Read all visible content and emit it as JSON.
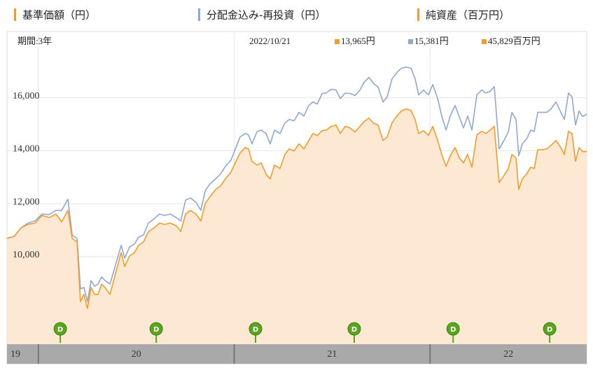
{
  "chart_data": {
    "type": "line",
    "period": "期間:3年",
    "date": "2022/10/21",
    "latest": [
      {
        "label": "13,965円",
        "color": "#f39c2b"
      },
      {
        "label": "15,381円",
        "color": "#8fa8d2"
      },
      {
        "label": "45,829百万円",
        "color": "#f39c2b"
      }
    ],
    "legend_extra": [
      {
        "name": "純資産（百万円）",
        "color": "#f39c2b"
      }
    ],
    "x": [
      19.84,
      19.876,
      19.912,
      19.947,
      19.983,
      20.019,
      20.055,
      20.09,
      20.119,
      20.151,
      20.173,
      20.198,
      20.215,
      20.233,
      20.251,
      20.269,
      20.287,
      20.305,
      20.323,
      20.341,
      20.366,
      20.394,
      20.423,
      20.441,
      20.466,
      20.491,
      20.512,
      20.537,
      20.562,
      20.591,
      20.619,
      20.644,
      20.673,
      20.705,
      20.727,
      20.752,
      20.777,
      20.805,
      20.83,
      20.852,
      20.877,
      20.905,
      20.93,
      20.955,
      20.984,
      21.009,
      21.03,
      21.056,
      21.073,
      21.091,
      21.116,
      21.138,
      21.163,
      21.184,
      21.206,
      21.234,
      21.259,
      21.281,
      21.306,
      21.331,
      21.356,
      21.381,
      21.402,
      21.424,
      21.449,
      21.47,
      21.495,
      21.52,
      21.542,
      21.567,
      21.592,
      21.617,
      21.642,
      21.663,
      21.688,
      21.71,
      21.735,
      21.76,
      21.781,
      21.806,
      21.831,
      21.853,
      21.878,
      21.903,
      21.924,
      21.942,
      21.967,
      21.992,
      22.014,
      22.039,
      22.06,
      22.082,
      22.103,
      22.128,
      22.15,
      22.171,
      22.192,
      22.214,
      22.239,
      22.264,
      22.285,
      22.307,
      22.328,
      22.353,
      22.378,
      22.4,
      22.418,
      22.439,
      22.453,
      22.471,
      22.493,
      22.514,
      22.532,
      22.55,
      22.575,
      22.597,
      22.618,
      22.643,
      22.668,
      22.686,
      22.707,
      22.725,
      22.743,
      22.761,
      22.779,
      22.8
    ],
    "xlim": [
      19.84,
      22.8
    ],
    "xticks": [
      {
        "value": 19,
        "label": "19"
      },
      {
        "value": 20,
        "label": "20"
      },
      {
        "value": 21,
        "label": "21"
      },
      {
        "value": 22,
        "label": "22"
      }
    ],
    "ylim": [
      6700,
      18500
    ],
    "yticks": [
      {
        "value": 10000,
        "label": "10,000"
      },
      {
        "value": 12000,
        "label": "12,000"
      },
      {
        "value": 14000,
        "label": "14,000"
      },
      {
        "value": 16000,
        "label": "16,000"
      }
    ],
    "grid": true,
    "series": [
      {
        "name": "基準価額（円）",
        "color": "#f39c2b",
        "fill": "#fde8d3",
        "values": [
          10690,
          10770,
          11090,
          11220,
          11270,
          11560,
          11480,
          11610,
          11320,
          11750,
          10690,
          10560,
          8310,
          8580,
          8050,
          8840,
          8580,
          8580,
          8970,
          8840,
          8580,
          9370,
          10160,
          9630,
          10030,
          10160,
          10430,
          10560,
          10950,
          11090,
          11270,
          11220,
          11270,
          11170,
          10950,
          11610,
          11750,
          11610,
          11350,
          12010,
          12270,
          12540,
          12670,
          12940,
          13200,
          13600,
          13910,
          14120,
          14070,
          13600,
          13460,
          13540,
          13120,
          12940,
          13460,
          13330,
          13860,
          14070,
          13990,
          14260,
          14070,
          14390,
          14650,
          14570,
          14760,
          14780,
          14920,
          14970,
          14650,
          14920,
          14860,
          14710,
          14920,
          15100,
          15230,
          15050,
          14970,
          14390,
          14520,
          15050,
          15310,
          15500,
          15580,
          15520,
          15180,
          14650,
          14760,
          14570,
          14920,
          14390,
          13860,
          13410,
          13810,
          14120,
          13730,
          13540,
          13860,
          13380,
          14600,
          14730,
          14650,
          14780,
          14920,
          12800,
          13070,
          13330,
          13860,
          13730,
          12540,
          12940,
          13120,
          13380,
          13330,
          14040,
          14040,
          14070,
          14200,
          14390,
          14120,
          13860,
          14730,
          14650,
          13600,
          14120,
          13970,
          13965
        ]
      },
      {
        "name": "分配金込み-再投資（円）",
        "color": "#8fa8d2",
        "values": [
          10690,
          10770,
          11090,
          11270,
          11350,
          11610,
          11590,
          11750,
          11750,
          12170,
          10820,
          10690,
          8790,
          8840,
          8310,
          9100,
          8890,
          8970,
          9240,
          9100,
          8970,
          9690,
          10430,
          9950,
          10370,
          10480,
          10740,
          10820,
          11270,
          11430,
          11610,
          11560,
          11610,
          11480,
          11350,
          12140,
          12220,
          12060,
          11750,
          12490,
          12750,
          12940,
          13120,
          13410,
          13650,
          14120,
          14520,
          14650,
          14600,
          14260,
          14710,
          14780,
          14650,
          14260,
          14780,
          14650,
          15050,
          15180,
          15130,
          15450,
          15310,
          15710,
          15840,
          15760,
          16160,
          16180,
          16320,
          16290,
          15970,
          16180,
          16160,
          16080,
          16290,
          16580,
          16770,
          16550,
          16400,
          15840,
          16030,
          16710,
          16950,
          17110,
          17160,
          17110,
          16710,
          16110,
          16290,
          16110,
          16500,
          15970,
          15310,
          14780,
          15310,
          15710,
          15260,
          14860,
          15310,
          14780,
          16110,
          16290,
          16180,
          16240,
          16420,
          14070,
          14390,
          14710,
          15450,
          15180,
          13810,
          14260,
          14440,
          14780,
          14730,
          15450,
          15450,
          15450,
          15580,
          15840,
          15450,
          15180,
          16180,
          16030,
          14970,
          15500,
          15290,
          15381
        ]
      }
    ],
    "dividends": {
      "label": "D",
      "color": "#5aa51e",
      "x": [
        20.112,
        20.602,
        21.109,
        21.613,
        22.118,
        22.611
      ]
    }
  }
}
